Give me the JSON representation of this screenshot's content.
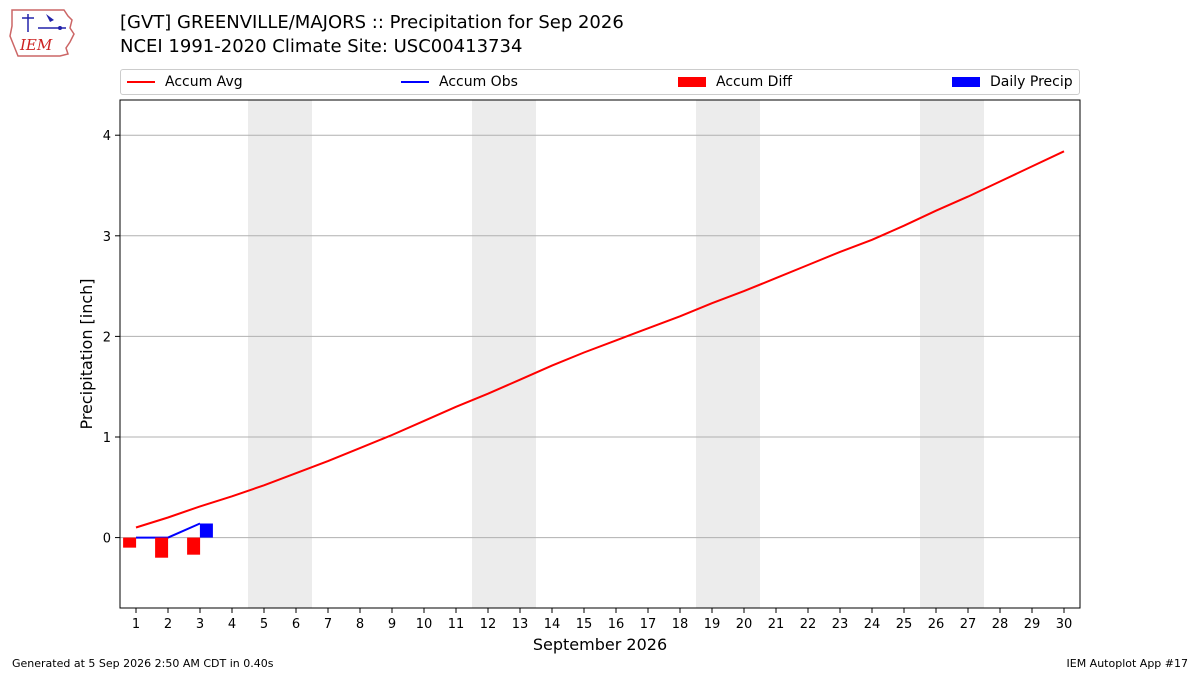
{
  "header": {
    "logo_text": "IEM",
    "title_line1": "[GVT] GREENVILLE/MAJORS :: Precipitation for Sep 2026",
    "title_line2": "NCEI 1991-2020 Climate Site: USC00413734"
  },
  "legend": {
    "items": [
      {
        "label": "Accum Avg",
        "kind": "line",
        "color": "#ff0000"
      },
      {
        "label": "Accum Obs",
        "kind": "line",
        "color": "#0000ff"
      },
      {
        "label": "Accum Diff",
        "kind": "box",
        "color": "#ff0000"
      },
      {
        "label": "Daily Precip",
        "kind": "box",
        "color": "#0000ff"
      }
    ],
    "placement": "top"
  },
  "chart_data": {
    "type": "line",
    "xlabel": "September 2026",
    "ylabel": "Precipitation [inch]",
    "xlim": [
      0.5,
      30.5
    ],
    "ylim": [
      -0.7,
      4.35
    ],
    "x_ticks": [
      1,
      2,
      3,
      4,
      5,
      6,
      7,
      8,
      9,
      10,
      11,
      12,
      13,
      14,
      15,
      16,
      17,
      18,
      19,
      20,
      21,
      22,
      23,
      24,
      25,
      26,
      27,
      28,
      29,
      30
    ],
    "y_ticks": [
      0,
      1,
      2,
      3,
      4
    ],
    "grid": "horizontal",
    "weekend_shading_days": [
      [
        5,
        6
      ],
      [
        12,
        13
      ],
      [
        19,
        20
      ],
      [
        26,
        27
      ]
    ],
    "series": [
      {
        "name": "Accum Avg",
        "type": "line",
        "color": "#ff0000",
        "x": [
          1,
          2,
          3,
          4,
          5,
          6,
          7,
          8,
          9,
          10,
          11,
          12,
          13,
          14,
          15,
          16,
          17,
          18,
          19,
          20,
          21,
          22,
          23,
          24,
          25,
          26,
          27,
          28,
          29,
          30
        ],
        "values": [
          0.1,
          0.2,
          0.31,
          0.41,
          0.52,
          0.64,
          0.76,
          0.89,
          1.02,
          1.16,
          1.3,
          1.43,
          1.57,
          1.71,
          1.84,
          1.96,
          2.08,
          2.2,
          2.33,
          2.45,
          2.58,
          2.71,
          2.84,
          2.96,
          3.1,
          3.25,
          3.39,
          3.54,
          3.69,
          3.84
        ]
      },
      {
        "name": "Accum Obs",
        "type": "line",
        "color": "#0000ff",
        "x": [
          1,
          2,
          3
        ],
        "values": [
          0.0,
          0.0,
          0.14
        ]
      },
      {
        "name": "Accum Diff",
        "type": "bar",
        "color": "#ff0000",
        "offset": -0.2,
        "x": [
          1,
          2,
          3
        ],
        "values": [
          -0.1,
          -0.2,
          -0.17
        ]
      },
      {
        "name": "Daily Precip",
        "type": "bar",
        "color": "#0000ff",
        "offset": 0.2,
        "x": [
          1,
          2,
          3
        ],
        "values": [
          0.0,
          0.0,
          0.14
        ]
      }
    ]
  },
  "footer": {
    "left": "Generated at 5 Sep 2026 2:50 AM CDT in 0.40s",
    "right": "IEM Autoplot App #17"
  }
}
